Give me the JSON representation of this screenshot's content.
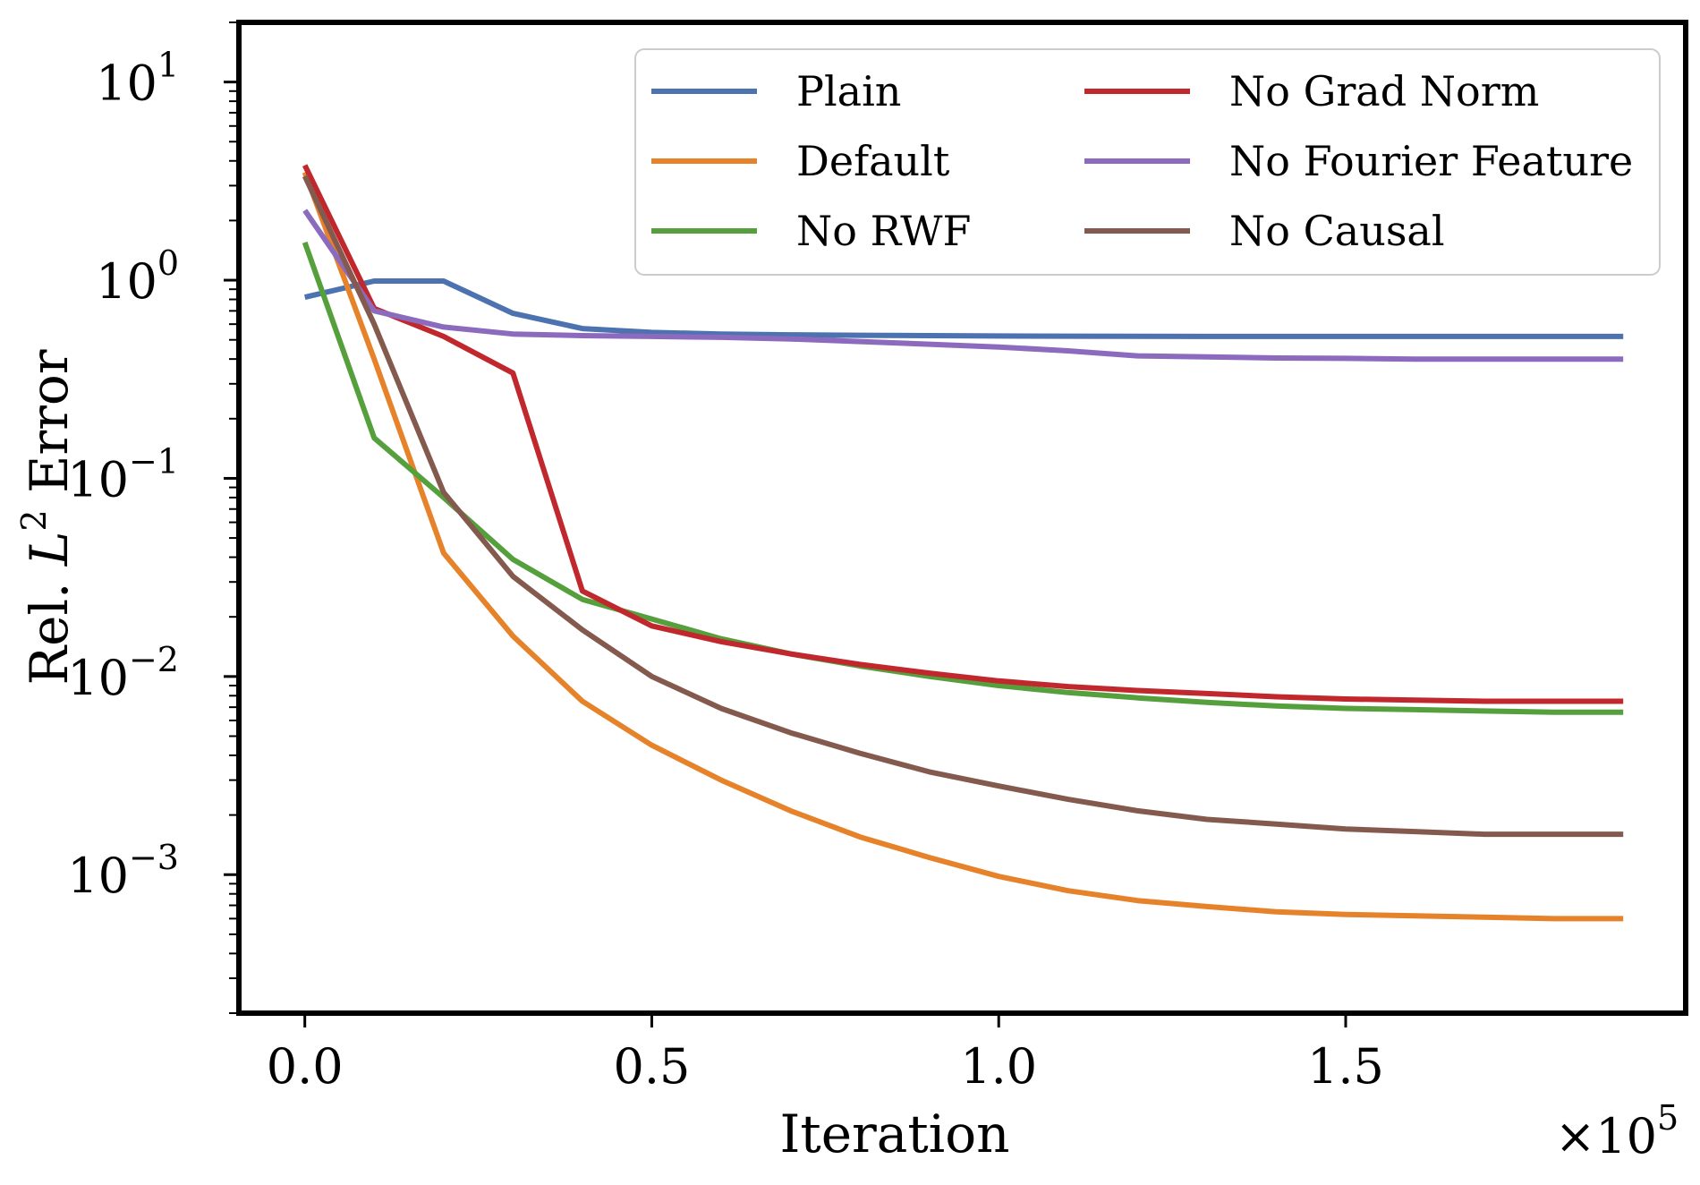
{
  "chart_data": {
    "type": "line",
    "title": "",
    "xlabel": "Iteration",
    "ylabel": "Rel. L² Error",
    "ylabel_parts": {
      "prefix": "Rel. ",
      "var": "L",
      "sup": "2",
      "suffix": " Error"
    },
    "x_multiplier": {
      "base": "×10",
      "exp": "5"
    },
    "yscale": "log",
    "xlim": [
      -9500,
      199000
    ],
    "ylim": [
      0.0002,
      20
    ],
    "x_ticks": [
      {
        "value": 0,
        "label": "0.0"
      },
      {
        "value": 50000,
        "label": "0.5"
      },
      {
        "value": 100000,
        "label": "1.0"
      },
      {
        "value": 150000,
        "label": "1.5"
      }
    ],
    "y_ticks": [
      {
        "value": 0.001,
        "base": "10",
        "exp": "−3"
      },
      {
        "value": 0.01,
        "base": "10",
        "exp": "−2"
      },
      {
        "value": 0.1,
        "base": "10",
        "exp": "−1"
      },
      {
        "value": 1,
        "base": "10",
        "exp": "0"
      },
      {
        "value": 10,
        "base": "10",
        "exp": "1"
      }
    ],
    "grid": false,
    "legend_position": "top-right",
    "legend_columns": 2,
    "x": [
      0,
      10000,
      20000,
      30000,
      40000,
      50000,
      60000,
      70000,
      80000,
      90000,
      100000,
      110000,
      120000,
      130000,
      140000,
      150000,
      160000,
      170000,
      180000,
      190000
    ],
    "series": [
      {
        "name": "Plain",
        "color": "#4c72b0",
        "values": [
          0.82,
          0.99,
          0.99,
          0.68,
          0.57,
          0.545,
          0.535,
          0.53,
          0.527,
          0.525,
          0.523,
          0.522,
          0.521,
          0.52,
          0.52,
          0.52,
          0.52,
          0.52,
          0.52,
          0.52
        ]
      },
      {
        "name": "Default",
        "color": "#e6832a",
        "values": [
          3.5,
          0.4,
          0.042,
          0.016,
          0.0075,
          0.0045,
          0.003,
          0.0021,
          0.00155,
          0.00122,
          0.00098,
          0.00083,
          0.00074,
          0.00069,
          0.00065,
          0.00063,
          0.00062,
          0.00061,
          0.0006,
          0.0006
        ]
      },
      {
        "name": "No RWF",
        "color": "#55a03c",
        "values": [
          1.55,
          0.16,
          0.08,
          0.039,
          0.0245,
          0.0195,
          0.0155,
          0.013,
          0.0113,
          0.01,
          0.009,
          0.0083,
          0.0078,
          0.0074,
          0.0071,
          0.0069,
          0.0068,
          0.0067,
          0.0066,
          0.0066
        ]
      },
      {
        "name": "No Grad Norm",
        "color": "#c0282d",
        "values": [
          3.8,
          0.72,
          0.52,
          0.34,
          0.027,
          0.018,
          0.015,
          0.013,
          0.0115,
          0.0104,
          0.0095,
          0.0089,
          0.0085,
          0.0082,
          0.0079,
          0.0077,
          0.0076,
          0.0075,
          0.0075,
          0.0075
        ]
      },
      {
        "name": "No Fourier Feature",
        "color": "#8c6bbf",
        "values": [
          2.25,
          0.7,
          0.58,
          0.535,
          0.525,
          0.52,
          0.515,
          0.505,
          0.49,
          0.475,
          0.46,
          0.44,
          0.415,
          0.41,
          0.405,
          0.403,
          0.4,
          0.4,
          0.4,
          0.4
        ]
      },
      {
        "name": "No Causal",
        "color": "#845a4e",
        "values": [
          3.35,
          0.6,
          0.085,
          0.032,
          0.0172,
          0.01,
          0.0069,
          0.0052,
          0.0041,
          0.0033,
          0.0028,
          0.0024,
          0.0021,
          0.0019,
          0.0018,
          0.0017,
          0.00165,
          0.0016,
          0.0016,
          0.0016
        ]
      }
    ]
  }
}
